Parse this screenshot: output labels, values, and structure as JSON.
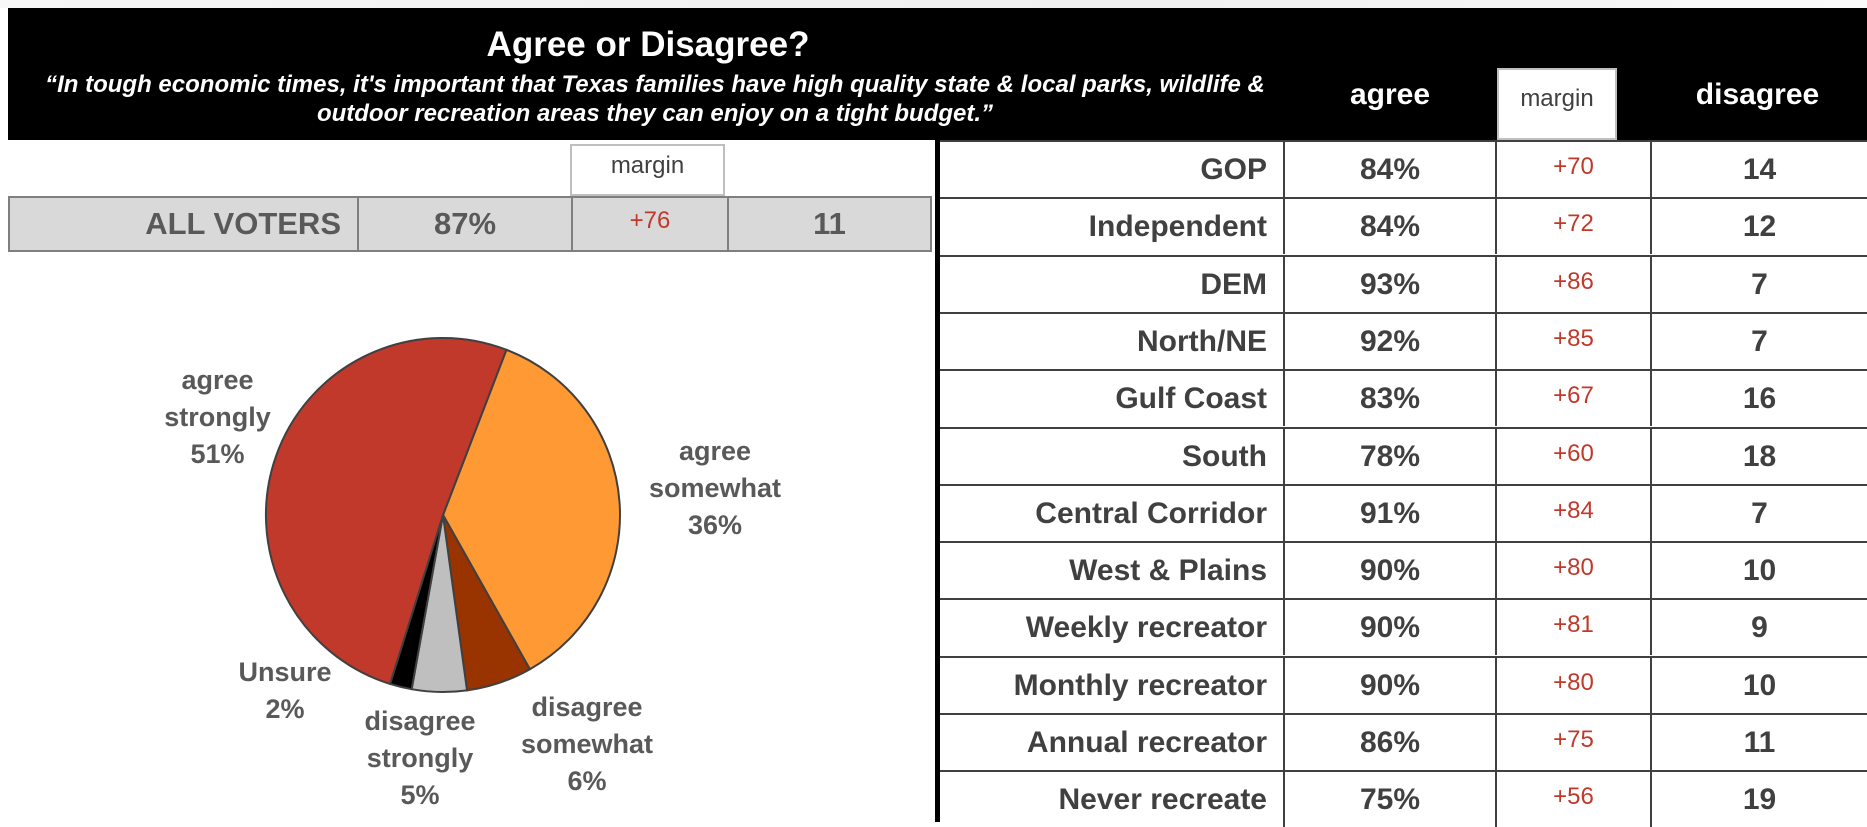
{
  "title": "Agree or Disagree?",
  "quote": "“In tough economic times, it's important that Texas families have high quality state & local parks, wildlife & outdoor recreation areas they can enjoy on a tight budget.”",
  "columns": {
    "agree": "agree",
    "margin": "margin",
    "disagree": "disagree"
  },
  "all_voters": {
    "label": "ALL VOTERS",
    "agree": "87%",
    "margin": "+76",
    "disagree": "11"
  },
  "rows": [
    {
      "label": "GOP",
      "agree": "84%",
      "margin": "+70",
      "disagree": "14"
    },
    {
      "label": "Independent",
      "agree": "84%",
      "margin": "+72",
      "disagree": "12"
    },
    {
      "label": "DEM",
      "agree": "93%",
      "margin": "+86",
      "disagree": "7"
    },
    {
      "label": "North/NE",
      "agree": "92%",
      "margin": "+85",
      "disagree": "7"
    },
    {
      "label": "Gulf Coast",
      "agree": "83%",
      "margin": "+67",
      "disagree": "16"
    },
    {
      "label": "South",
      "agree": "78%",
      "margin": "+60",
      "disagree": "18"
    },
    {
      "label": "Central Corridor",
      "agree": "91%",
      "margin": "+84",
      "disagree": "7"
    },
    {
      "label": "West & Plains",
      "agree": "90%",
      "margin": "+80",
      "disagree": "10"
    },
    {
      "label": "Weekly recreator",
      "agree": "90%",
      "margin": "+81",
      "disagree": "9"
    },
    {
      "label": "Monthly recreator",
      "agree": "90%",
      "margin": "+80",
      "disagree": "10"
    },
    {
      "label": "Annual recreator",
      "agree": "86%",
      "margin": "+75",
      "disagree": "11"
    },
    {
      "label": "Never recreate",
      "agree": "75%",
      "margin": "+56",
      "disagree": "19"
    }
  ],
  "chart_data": {
    "type": "pie",
    "slices": [
      {
        "name": "agree somewhat",
        "value": 36,
        "label_lines": [
          "agree",
          "somewhat",
          "36%"
        ],
        "color": "#ff9933"
      },
      {
        "name": "disagree somewhat",
        "value": 6,
        "label_lines": [
          "disagree",
          "somewhat",
          "6%"
        ],
        "color": "#993300"
      },
      {
        "name": "disagree strongly",
        "value": 5,
        "label_lines": [
          "disagree",
          "strongly",
          "5%"
        ],
        "color": "#bfbfbf"
      },
      {
        "name": "Unsure",
        "value": 2,
        "label_lines": [
          "Unsure",
          "2%"
        ],
        "color": "#000000"
      },
      {
        "name": "agree strongly",
        "value": 51,
        "label_lines": [
          "agree",
          "strongly",
          "51%"
        ],
        "color": "#c0392b"
      }
    ],
    "start_angle_deg": 21
  }
}
